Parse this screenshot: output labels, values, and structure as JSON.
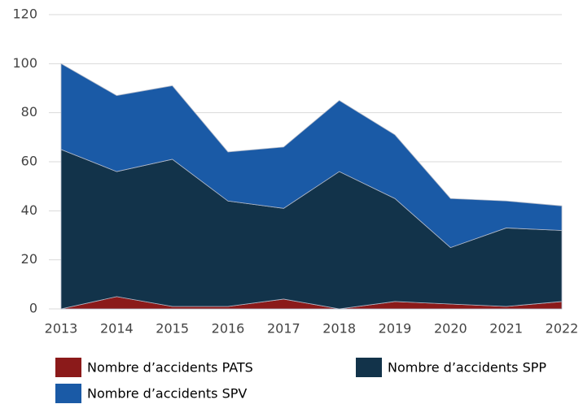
{
  "chart_data": {
    "type": "stacked_area",
    "categories": [
      "2013",
      "2014",
      "2015",
      "2016",
      "2017",
      "2018",
      "2019",
      "2020",
      "2021",
      "2022"
    ],
    "series": [
      {
        "name": "Nombre d’accidents PATS",
        "color": "#8b1a1a",
        "values": [
          0,
          5,
          1,
          1,
          4,
          0,
          3,
          2,
          1,
          3
        ]
      },
      {
        "name": "Nombre d’accidents SPP",
        "color": "#12334a",
        "values": [
          65,
          51,
          60,
          43,
          37,
          56,
          42,
          23,
          32,
          29
        ]
      },
      {
        "name": "Nombre d’accidents SPV",
        "color": "#1a5aa6",
        "values": [
          35,
          31,
          30,
          20,
          25,
          29,
          26,
          20,
          11,
          10
        ]
      }
    ],
    "ylim": [
      0,
      120
    ],
    "yticks": [
      0,
      20,
      40,
      60,
      80,
      100,
      120
    ],
    "grid": true,
    "legend": "bottom"
  }
}
